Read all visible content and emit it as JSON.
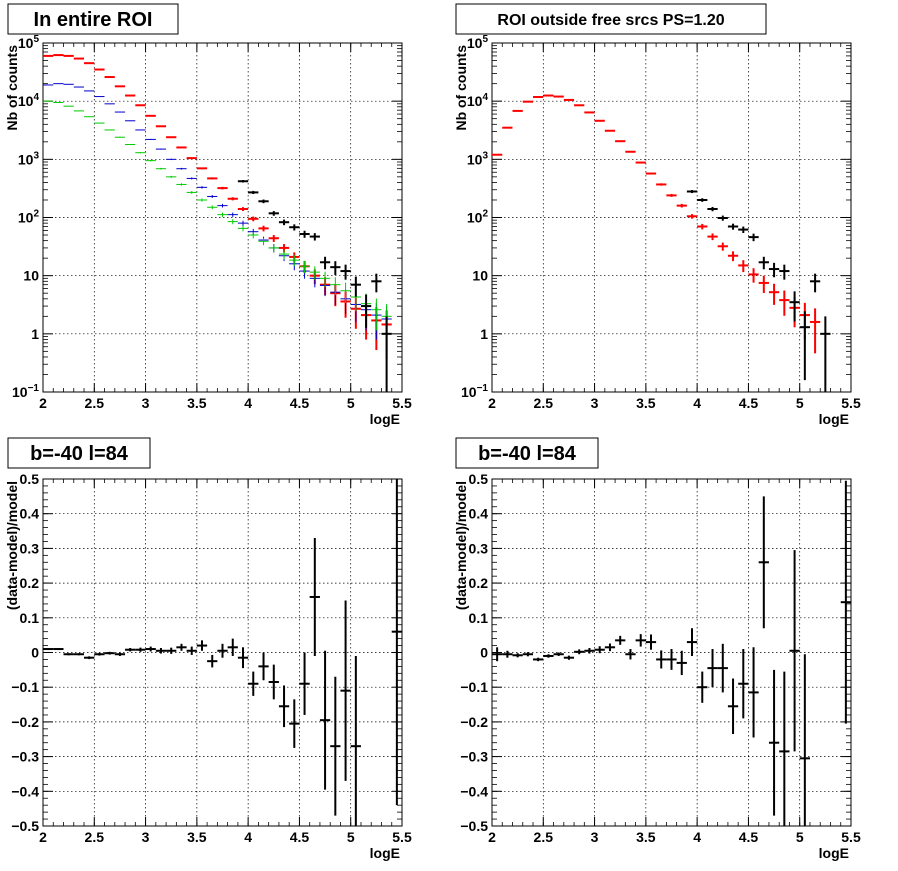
{
  "chart_data": [
    {
      "type": "scatter",
      "title": "In entire ROI",
      "xlabel": "logE",
      "ylabel": "Nb of counts",
      "xlim": [
        2,
        5.5
      ],
      "ylim": [
        0.1,
        100000
      ],
      "yscale": "log",
      "grid": true,
      "xticks": [
        "2",
        "2.5",
        "3",
        "3.5",
        "4",
        "4.5",
        "5",
        "5.5"
      ],
      "series": [
        {
          "color": "#ff0000",
          "points": [
            [
              2.05,
              60000
            ],
            [
              2.15,
              62000
            ],
            [
              2.25,
              60000
            ],
            [
              2.35,
              54000
            ],
            [
              2.45,
              45000
            ],
            [
              2.55,
              35000
            ],
            [
              2.65,
              26000
            ],
            [
              2.75,
              18000
            ],
            [
              2.85,
              12500
            ],
            [
              2.95,
              8500
            ],
            [
              3.05,
              5600
            ],
            [
              3.15,
              3700
            ],
            [
              3.25,
              2400
            ],
            [
              3.35,
              1600
            ],
            [
              3.45,
              1050
            ],
            [
              3.55,
              700
            ],
            [
              3.65,
              470
            ],
            [
              3.75,
              320
            ],
            [
              3.85,
              210
            ],
            [
              3.95,
              140
            ],
            [
              4.05,
              95
            ],
            [
              4.15,
              65
            ],
            [
              4.25,
              44
            ],
            [
              4.35,
              30
            ],
            [
              4.45,
              21
            ],
            [
              4.55,
              14.5
            ],
            [
              4.65,
              10
            ],
            [
              4.75,
              7
            ],
            [
              4.85,
              5
            ],
            [
              4.95,
              3.6
            ],
            [
              5.05,
              2.7
            ],
            [
              5.15,
              2.1
            ],
            [
              5.25,
              1.7
            ],
            [
              5.35,
              1.45
            ]
          ]
        },
        {
          "color": "#0000cc",
          "points": [
            [
              2.05,
              19000
            ],
            [
              2.15,
              20000
            ],
            [
              2.25,
              19500
            ],
            [
              2.35,
              17500
            ],
            [
              2.45,
              15000
            ],
            [
              2.55,
              12000
            ],
            [
              2.65,
              9000
            ],
            [
              2.75,
              6500
            ],
            [
              2.85,
              4600
            ],
            [
              2.95,
              3200
            ],
            [
              3.05,
              2200
            ],
            [
              3.15,
              1500
            ],
            [
              3.25,
              1000
            ],
            [
              3.35,
              690
            ],
            [
              3.45,
              470
            ],
            [
              3.55,
              330
            ],
            [
              3.65,
              230
            ],
            [
              3.75,
              160
            ],
            [
              3.85,
              112
            ],
            [
              3.95,
              80
            ],
            [
              4.05,
              57
            ],
            [
              4.15,
              41
            ],
            [
              4.25,
              30
            ],
            [
              4.35,
              22
            ],
            [
              4.45,
              16
            ],
            [
              4.55,
              12
            ],
            [
              4.65,
              9
            ],
            [
              4.75,
              6.8
            ],
            [
              4.85,
              5.2
            ],
            [
              4.95,
              4
            ],
            [
              5.05,
              3.2
            ],
            [
              5.15,
              2.6
            ],
            [
              5.25,
              2.1
            ],
            [
              5.35,
              1.8
            ]
          ]
        },
        {
          "color": "#00cc00",
          "points": [
            [
              2.05,
              10000
            ],
            [
              2.15,
              9500
            ],
            [
              2.25,
              8200
            ],
            [
              2.35,
              6800
            ],
            [
              2.45,
              5400
            ],
            [
              2.55,
              4200
            ],
            [
              2.65,
              3200
            ],
            [
              2.75,
              2400
            ],
            [
              2.85,
              1800
            ],
            [
              2.95,
              1300
            ],
            [
              3.05,
              950
            ],
            [
              3.15,
              690
            ],
            [
              3.25,
              500
            ],
            [
              3.35,
              370
            ],
            [
              3.45,
              270
            ],
            [
              3.55,
              200
            ],
            [
              3.65,
              150
            ],
            [
              3.75,
              112
            ],
            [
              3.85,
              85
            ],
            [
              3.95,
              65
            ],
            [
              4.05,
              50
            ],
            [
              4.15,
              39
            ],
            [
              4.25,
              30
            ],
            [
              4.35,
              23.5
            ],
            [
              4.45,
              18.5
            ],
            [
              4.55,
              14.5
            ],
            [
              4.65,
              11.5
            ],
            [
              4.75,
              9
            ],
            [
              4.85,
              7
            ],
            [
              4.95,
              5.5
            ],
            [
              5.05,
              4.3
            ],
            [
              5.15,
              3.3
            ],
            [
              5.25,
              2.6
            ],
            [
              5.35,
              2
            ]
          ]
        },
        {
          "color": "#000000",
          "points": [
            [
              3.95,
              420
            ],
            [
              4.05,
              270
            ],
            [
              4.15,
              190
            ],
            [
              4.25,
              118
            ],
            [
              4.35,
              83
            ],
            [
              4.45,
              68
            ],
            [
              4.55,
              52
            ],
            [
              4.65,
              47
            ],
            [
              4.75,
              17
            ],
            [
              4.85,
              14
            ],
            [
              4.95,
              12
            ],
            [
              5.05,
              7
            ],
            [
              5.15,
              3
            ],
            [
              5.25,
              8
            ],
            [
              5.35,
              1
            ]
          ]
        }
      ]
    },
    {
      "type": "scatter",
      "title": "ROI outside free srcs PS=1.20",
      "xlabel": "logE",
      "ylabel": "Nb of counts",
      "xlim": [
        2,
        5.5
      ],
      "ylim": [
        0.1,
        100000
      ],
      "yscale": "log",
      "grid": true,
      "xticks": [
        "2",
        "2.5",
        "3",
        "3.5",
        "4",
        "4.5",
        "5",
        "5.5"
      ],
      "series": [
        {
          "color": "#ff0000",
          "points": [
            [
              2.05,
              1200
            ],
            [
              2.15,
              3500
            ],
            [
              2.25,
              6800
            ],
            [
              2.35,
              9800
            ],
            [
              2.45,
              11800
            ],
            [
              2.55,
              12500
            ],
            [
              2.65,
              12000
            ],
            [
              2.75,
              10500
            ],
            [
              2.85,
              8500
            ],
            [
              2.95,
              6400
            ],
            [
              3.05,
              4600
            ],
            [
              3.15,
              3100
            ],
            [
              3.25,
              2050
            ],
            [
              3.35,
              1350
            ],
            [
              3.45,
              880
            ],
            [
              3.55,
              570
            ],
            [
              3.65,
              370
            ],
            [
              3.75,
              240
            ],
            [
              3.85,
              160
            ],
            [
              3.95,
              105
            ],
            [
              4.05,
              70
            ],
            [
              4.15,
              47
            ],
            [
              4.25,
              32
            ],
            [
              4.35,
              22
            ],
            [
              4.45,
              15
            ],
            [
              4.55,
              10.5
            ],
            [
              4.65,
              7.5
            ],
            [
              4.75,
              5.2
            ],
            [
              4.85,
              3.8
            ],
            [
              4.95,
              2.8
            ],
            [
              5.05,
              2.1
            ],
            [
              5.15,
              1.6
            ]
          ]
        },
        {
          "color": "#000000",
          "points": [
            [
              3.95,
              280
            ],
            [
              4.05,
              200
            ],
            [
              4.15,
              140
            ],
            [
              4.25,
              98
            ],
            [
              4.35,
              70
            ],
            [
              4.45,
              62
            ],
            [
              4.55,
              46
            ],
            [
              4.65,
              17
            ],
            [
              4.75,
              13
            ],
            [
              4.85,
              12
            ],
            [
              4.95,
              3.5
            ],
            [
              5.05,
              1.3
            ],
            [
              5.15,
              8
            ],
            [
              5.25,
              1
            ]
          ]
        }
      ]
    },
    {
      "type": "scatter",
      "title": "b=-40 l=84",
      "xlabel": "logE",
      "ylabel": "(data-model)/model",
      "xlim": [
        2,
        5.5
      ],
      "ylim": [
        -0.5,
        0.5
      ],
      "yscale": "linear",
      "grid": true,
      "xticks": [
        "2",
        "2.5",
        "3",
        "3.5",
        "4",
        "4.5",
        "5",
        "5.5"
      ],
      "yticks": [
        "-0.5",
        "-0.4",
        "-0.3",
        "-0.2",
        "-0.1",
        "0",
        "0.1",
        "0.2",
        "0.3",
        "0.4",
        "0.5"
      ],
      "series": [
        {
          "color": "#000000",
          "points": [
            [
              2.05,
              0.01,
              0.003
            ],
            [
              2.15,
              0.01,
              0.003
            ],
            [
              2.25,
              -0.005,
              0.003
            ],
            [
              2.35,
              -0.005,
              0.003
            ],
            [
              2.45,
              -0.015,
              0.004
            ],
            [
              2.55,
              -0.005,
              0.004
            ],
            [
              2.65,
              -0.002,
              0.004
            ],
            [
              2.75,
              -0.005,
              0.005
            ],
            [
              2.85,
              0.008,
              0.005
            ],
            [
              2.95,
              0.008,
              0.006
            ],
            [
              3.05,
              0.01,
              0.007
            ],
            [
              3.15,
              0.005,
              0.008
            ],
            [
              3.25,
              0.005,
              0.009
            ],
            [
              3.35,
              0.015,
              0.01
            ],
            [
              3.45,
              0.005,
              0.012
            ],
            [
              3.55,
              0.02,
              0.015
            ],
            [
              3.65,
              -0.025,
              0.018
            ],
            [
              3.75,
              0.005,
              0.02
            ],
            [
              3.85,
              0.015,
              0.025
            ],
            [
              3.95,
              -0.015,
              0.03
            ],
            [
              4.05,
              -0.09,
              0.035
            ],
            [
              4.15,
              -0.04,
              0.04
            ],
            [
              4.25,
              -0.085,
              0.05
            ],
            [
              4.35,
              -0.155,
              0.06
            ],
            [
              4.45,
              -0.205,
              0.07
            ],
            [
              4.55,
              -0.09,
              0.09
            ],
            [
              4.65,
              0.16,
              0.17
            ],
            [
              4.75,
              -0.195,
              0.2
            ],
            [
              4.85,
              -0.27,
              0.2
            ],
            [
              4.95,
              -0.11,
              0.26
            ],
            [
              5.05,
              -0.27,
              0.26
            ],
            [
              5.45,
              0.06,
              0.5
            ]
          ]
        }
      ]
    },
    {
      "type": "scatter",
      "title": "b=-40 l=84",
      "xlabel": "logE",
      "ylabel": "(data-model)/model",
      "xlim": [
        2,
        5.5
      ],
      "ylim": [
        -0.5,
        0.5
      ],
      "yscale": "linear",
      "grid": true,
      "xticks": [
        "2",
        "2.5",
        "3",
        "3.5",
        "4",
        "4.5",
        "5",
        "5.5"
      ],
      "yticks": [
        "-0.5",
        "-0.4",
        "-0.3",
        "-0.2",
        "-0.1",
        "0",
        "0.1",
        "0.2",
        "0.3",
        "0.4",
        "0.5"
      ],
      "series": [
        {
          "color": "#000000",
          "points": [
            [
              2.05,
              -0.005,
              0.02
            ],
            [
              2.15,
              -0.005,
              0.01
            ],
            [
              2.25,
              -0.008,
              0.006
            ],
            [
              2.35,
              -0.005,
              0.006
            ],
            [
              2.45,
              -0.02,
              0.005
            ],
            [
              2.55,
              -0.01,
              0.005
            ],
            [
              2.65,
              -0.005,
              0.005
            ],
            [
              2.75,
              -0.015,
              0.006
            ],
            [
              2.85,
              0.002,
              0.007
            ],
            [
              2.95,
              0.005,
              0.008
            ],
            [
              3.05,
              0.008,
              0.01
            ],
            [
              3.15,
              0.015,
              0.011
            ],
            [
              3.25,
              0.035,
              0.013
            ],
            [
              3.35,
              -0.005,
              0.015
            ],
            [
              3.45,
              0.035,
              0.018
            ],
            [
              3.55,
              0.03,
              0.022
            ],
            [
              3.65,
              -0.02,
              0.026
            ],
            [
              3.75,
              -0.02,
              0.03
            ],
            [
              3.85,
              -0.03,
              0.035
            ],
            [
              3.95,
              0.03,
              0.04
            ],
            [
              4.05,
              -0.1,
              0.045
            ],
            [
              4.15,
              -0.045,
              0.055
            ],
            [
              4.25,
              -0.045,
              0.07
            ],
            [
              4.35,
              -0.155,
              0.08
            ],
            [
              4.45,
              -0.09,
              0.1
            ],
            [
              4.55,
              -0.115,
              0.13
            ],
            [
              4.65,
              0.26,
              0.19
            ],
            [
              4.75,
              -0.26,
              0.21
            ],
            [
              4.85,
              -0.285,
              0.23
            ],
            [
              4.95,
              0.005,
              0.29
            ],
            [
              5.05,
              -0.305,
              0.3
            ],
            [
              5.45,
              0.145,
              0.35
            ]
          ]
        }
      ]
    }
  ]
}
